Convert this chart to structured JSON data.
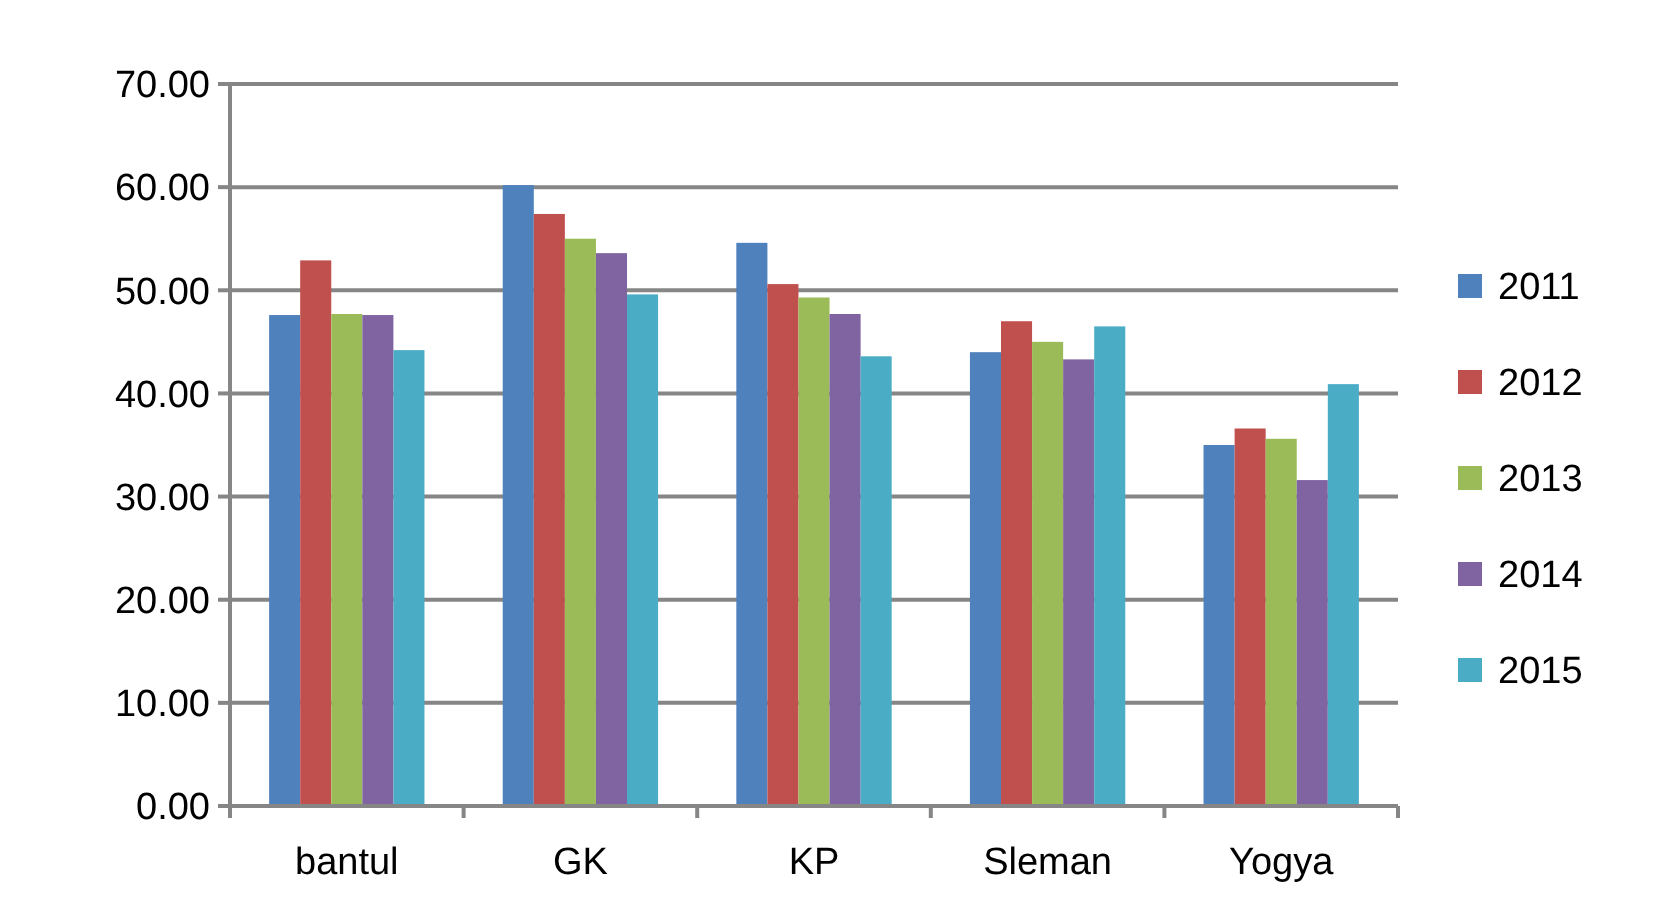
{
  "chart_data": {
    "type": "bar",
    "categories": [
      "bantul",
      "GK",
      "KP",
      "Sleman",
      "Yogya"
    ],
    "series": [
      {
        "name": "2011",
        "color": "#4f81bd",
        "values": [
          47.6,
          60.2,
          54.6,
          44.0,
          35.0
        ]
      },
      {
        "name": "2012",
        "color": "#c0504d",
        "values": [
          52.9,
          57.4,
          50.6,
          47.0,
          36.6
        ]
      },
      {
        "name": "2013",
        "color": "#9bbb59",
        "values": [
          47.7,
          55.0,
          49.3,
          45.0,
          35.6
        ]
      },
      {
        "name": "2014",
        "color": "#8064a2",
        "values": [
          47.6,
          53.6,
          47.7,
          43.3,
          31.6
        ]
      },
      {
        "name": "2015",
        "color": "#4bacc6",
        "values": [
          44.2,
          49.6,
          43.6,
          46.5,
          40.9
        ]
      }
    ],
    "ylim": [
      0,
      70
    ],
    "yticks": [
      {
        "value": 0,
        "label": "0.00"
      },
      {
        "value": 10,
        "label": "10.00"
      },
      {
        "value": 20,
        "label": "20.00"
      },
      {
        "value": 30,
        "label": "30.00"
      },
      {
        "value": 40,
        "label": "40.00"
      },
      {
        "value": 50,
        "label": "50.00"
      },
      {
        "value": 60,
        "label": "60.00"
      },
      {
        "value": 70,
        "label": "70.00"
      }
    ],
    "grid": "y",
    "legend": "right"
  }
}
